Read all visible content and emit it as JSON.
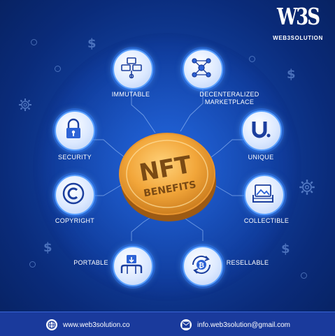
{
  "logo": {
    "mark": "W3S",
    "brand": "WEB3SOLUTION"
  },
  "center": {
    "line1": "NFT",
    "line2": "BENEFITS"
  },
  "benefits": [
    {
      "label": "IMMUTABLE",
      "icon": "building-blocks-icon"
    },
    {
      "label_line1": "DECENTERALIZED",
      "label_line2": "MARKETPLACE",
      "icon": "network-nodes-icon"
    },
    {
      "label": "SECURITY",
      "icon": "lock-icon"
    },
    {
      "label": "UNIQUE",
      "icon": "letter-u-icon"
    },
    {
      "label": "COPYRIGHT",
      "icon": "copyright-icon"
    },
    {
      "label": "COLLECTIBLE",
      "icon": "picture-collection-icon"
    },
    {
      "label": "PORTABLE",
      "icon": "hand-transfer-icon"
    },
    {
      "label": "RESELLABLE",
      "icon": "bitcoin-cycle-icon"
    }
  ],
  "footer": {
    "website": "www.web3solution.co",
    "email": "info.web3solution@gmail.com"
  },
  "colors": {
    "background": "#11409f",
    "node_ring": "#5aa0ff",
    "coin": "#f2a63a",
    "coin_text": "#7a4a14",
    "footer": "#1a3a9c"
  }
}
